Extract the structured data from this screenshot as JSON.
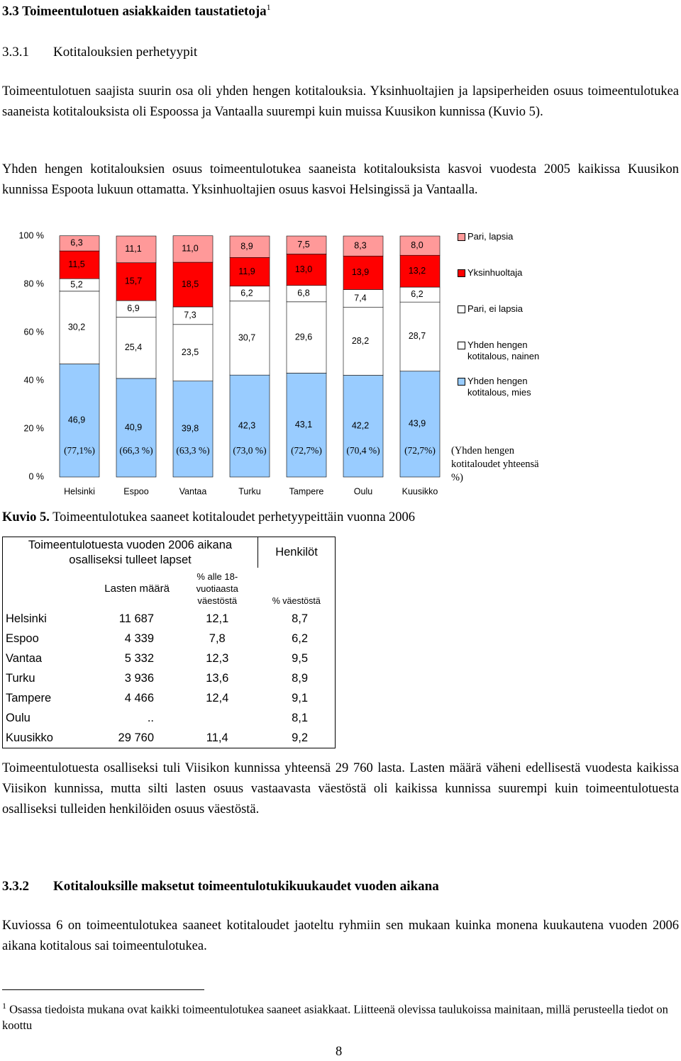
{
  "heading": {
    "number": "3.3",
    "title": "Toimeentulotuen asiakkaiden taustatietoja",
    "footnote_ref": "1"
  },
  "subheading": {
    "number": "3.3.1",
    "title": "Kotitalouksien perhetyypit"
  },
  "paragraphs": [
    "Toimeentulotuen saajista suurin osa oli yhden hengen kotitalouksia. Yksinhuoltajien ja lapsiperheiden osuus toimeentulotukea saaneista kotitalouksista oli Espoossa ja Vantaalla suurempi kuin muissa Kuusikon kunnissa (Kuvio 5).",
    "Yhden hengen kotitalouksien osuus toimeentulotukea saaneista kotitalouksista kasvoi vuodesta 2005 kaikissa Kuusikon kunnissa Espoota lukuun ottamatta. Yksinhuoltajien osuus kasvoi Helsingissä ja Vantaalla."
  ],
  "chart_data": {
    "type": "stacked_bar",
    "categories": [
      "Helsinki",
      "Espoo",
      "Vantaa",
      "Turku",
      "Tampere",
      "Oulu",
      "Kuusikko"
    ],
    "series": [
      {
        "name": "Yhden hengen kotitalous, mies",
        "color": "#99ccff",
        "values": [
          46.9,
          40.9,
          39.8,
          42.3,
          43.1,
          42.2,
          43.9
        ],
        "value_labels": [
          "46,9",
          "40,9",
          "39,8",
          "42,3",
          "43,1",
          "42,2",
          "43,9"
        ]
      },
      {
        "name": "Yhden hengen kotitalous, nainen",
        "color": "#ffffff",
        "values": [
          30.2,
          25.4,
          23.5,
          30.7,
          29.6,
          28.2,
          28.7
        ],
        "value_labels": [
          "30,2",
          "25,4",
          "23,5",
          "30,7",
          "29,6",
          "28,2",
          "28,7"
        ]
      },
      {
        "name": "Pari, ei lapsia",
        "color": "#ffffff",
        "values": [
          5.2,
          6.9,
          7.3,
          6.2,
          6.8,
          7.4,
          6.2
        ],
        "value_labels": [
          "5,2",
          "6,9",
          "7,3",
          "6,2",
          "6,8",
          "7,4",
          "6,2"
        ]
      },
      {
        "name": "Yksinhuoltaja",
        "color": "#ff0000",
        "values": [
          11.5,
          15.7,
          18.5,
          11.9,
          13.0,
          13.9,
          13.2
        ],
        "value_labels": [
          "11,5",
          "15,7",
          "18,5",
          "11,9",
          "13,0",
          "13,9",
          "13,2"
        ]
      },
      {
        "name": "Pari, lapsia",
        "color": "#ff9999",
        "values": [
          6.3,
          11.1,
          11.0,
          8.9,
          7.5,
          8.3,
          8.0
        ],
        "value_labels": [
          "6,3",
          "11,1",
          "11,0",
          "8,9",
          "7,5",
          "8,3",
          "8,0"
        ]
      }
    ],
    "ylim": [
      0,
      100
    ],
    "yticks": [
      {
        "value": 0,
        "label": "0 %"
      },
      {
        "value": 20,
        "label": "20 %"
      },
      {
        "value": 40,
        "label": "40 %"
      },
      {
        "value": 60,
        "label": "60 %"
      },
      {
        "value": 80,
        "label": "80 %"
      },
      {
        "value": 100,
        "label": "100 %"
      }
    ],
    "grid": false,
    "annotations": [
      "(77,1%)",
      "(66,3 %)",
      "(63,3 %)",
      "(73,0 %)",
      "(72,7%)",
      "(70,4 %)",
      "(72,7%)"
    ],
    "annotation_label": "(Yhden hengen kotitaloudet yhteensä %)"
  },
  "caption": {
    "label": "Kuvio 5.",
    "text": "Toimeentulotukea saaneet kotitaloudet perhetyypeittäin vuonna 2006"
  },
  "table": {
    "group_header": "Toimeentulotuesta vuoden 2006 aikana osalliseksi tulleet lapset",
    "side_header": "Henkilöt",
    "columns": [
      "Lasten määrä",
      "% alle 18-vuotiaasta väestöstä",
      "% väestöstä"
    ],
    "rows": [
      [
        "Helsinki",
        "11 687",
        "12,1",
        "8,7"
      ],
      [
        "Espoo",
        "4 339",
        "7,8",
        "6,2"
      ],
      [
        "Vantaa",
        "5 332",
        "12,3",
        "9,5"
      ],
      [
        "Turku",
        "3 936",
        "13,6",
        "8,9"
      ],
      [
        "Tampere",
        "4 466",
        "12,4",
        "9,1"
      ],
      [
        "Oulu",
        "..",
        null,
        "8,1"
      ],
      [
        "Kuusikko",
        "29 760",
        "11,4",
        "9,2"
      ]
    ]
  },
  "paragraph_after_table": "Toimeentulotuesta osalliseksi tuli Viisikon kunnissa yhteensä 29 760  lasta. Lasten määrä väheni edellisestä vuodesta kaikissa Viisikon kunnissa, mutta silti lasten osuus vastaavasta väestöstä oli kaikissa kunnissa suurempi kuin toimeentulotuesta osalliseksi tulleiden henkilöiden osuus väestöstä.",
  "section2": {
    "number": "3.3.2",
    "title": "Kotitalouksille maksetut toimeentulotukikuukaudet vuoden aikana",
    "paragraph": "Kuviossa 6 on toimeentulotukea saaneet kotitaloudet jaoteltu ryhmiin sen mukaan kuinka monena kuukautena vuoden 2006 aikana kotitalous sai toimeentulotukea."
  },
  "footnote": {
    "marker": "1",
    "text": "Osassa tiedoista mukana ovat kaikki toimeentulotukea saaneet asiakkaat. Liitteenä olevissa taulukoissa mainitaan, millä perusteella tiedot on koottu"
  },
  "page_number": "8"
}
